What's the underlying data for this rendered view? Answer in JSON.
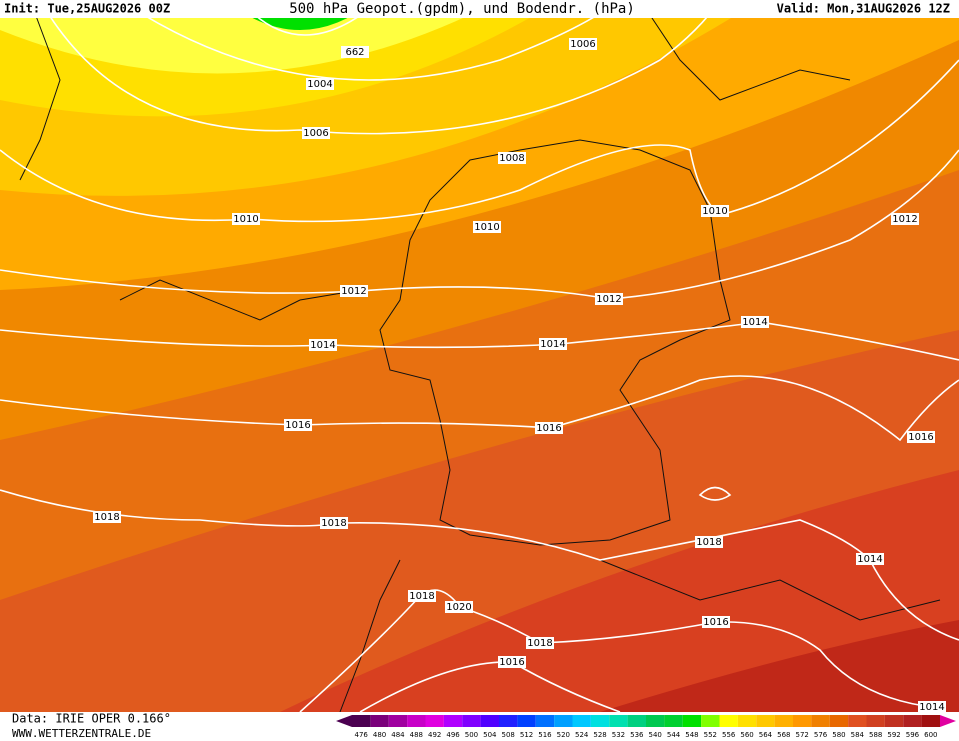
{
  "header": {
    "init": "Init: Tue,25AUG2026 00Z",
    "title": "500 hPa Geopot.(gpdm), und Bodendr. (hPa)",
    "valid": "Valid: Mon,31AUG2026 12Z"
  },
  "contour_labels": [
    662,
    1006,
    1004,
    1006,
    1008,
    1010,
    1010,
    1010,
    1012,
    1012,
    1012,
    1014,
    1014,
    1014,
    1016,
    1016,
    1016,
    1018,
    1018,
    1018,
    1014,
    1018,
    1020,
    1016,
    1018,
    1016,
    1014
  ],
  "footer": {
    "data": "Data: IRIE OPER 0.166°",
    "site": "WWW.WETTERZENTRALE.DE"
  },
  "colorbar": {
    "values": [
      476,
      480,
      484,
      488,
      492,
      496,
      500,
      504,
      508,
      512,
      516,
      520,
      524,
      528,
      532,
      536,
      540,
      544,
      548,
      552,
      556,
      560,
      564,
      568,
      572,
      576,
      580,
      584,
      588,
      592,
      596,
      600
    ],
    "colors": [
      "#4b0050",
      "#7a007a",
      "#a000a0",
      "#c800c8",
      "#e000e0",
      "#b000ff",
      "#8000ff",
      "#5000ff",
      "#2020ff",
      "#0040ff",
      "#0070ff",
      "#00a0ff",
      "#00c8ff",
      "#00e0e0",
      "#00e0b0",
      "#00d080",
      "#00c850",
      "#00d030",
      "#00e000",
      "#80ff00",
      "#ffff00",
      "#ffe000",
      "#ffc800",
      "#ffb000",
      "#ff9800",
      "#f08000",
      "#e86800",
      "#e05020",
      "#d04020",
      "#c03020",
      "#b02020",
      "#a01010"
    ]
  }
}
